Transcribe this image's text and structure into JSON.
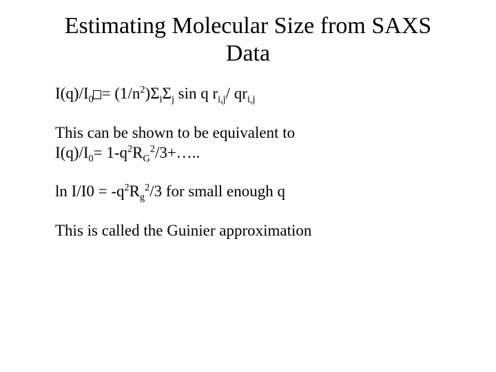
{
  "title_l1": "Estimating Molecular Size from SAXS",
  "title_l2": "Data",
  "eq1_a": "I(q)/I",
  "eq1_b": "= (1/n",
  "eq1_c": ")",
  "eq1_d": " sin  q r",
  "eq1_e": "/ qr",
  "p2_l1": "This can be shown to be  equivalent to",
  "p2_l2a": "I(q)/I",
  "p2_l2b": "= 1-q",
  "p2_l2c": "R",
  "p2_l2d": "/3+…..",
  "p3_a": "ln I/I0 = -q",
  "p3_b": "R",
  "p3_c": "/3  for small enough q",
  "p4": "This is called the Guinier approximation",
  "sup2": "2",
  "sub0": "0",
  "subG": "G",
  "subg": "g",
  "subi": "i",
  "subj": "j",
  "subij": "i,j",
  "sigma": "Σ"
}
